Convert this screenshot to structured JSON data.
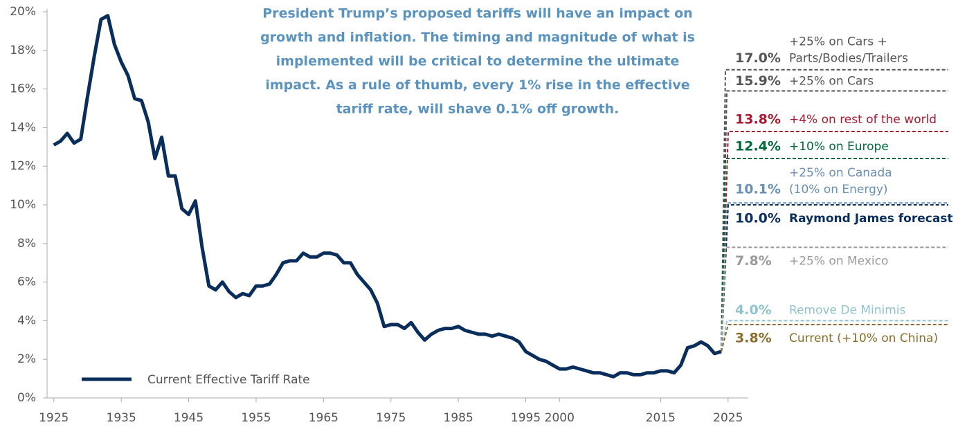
{
  "chart_data": {
    "type": "line",
    "title": [
      "President Trump’s proposed tariffs will have an impact on",
      "growth and inflation. The timing and magnitude of what is",
      "implemented will be critical to determine the ultimate",
      "impact. As a rule of thumb, every 1% rise in the effective",
      "tariff rate, will shave 0.1% off growth."
    ],
    "x": [
      1925,
      1926,
      1927,
      1928,
      1929,
      1930,
      1931,
      1932,
      1933,
      1934,
      1935,
      1936,
      1937,
      1938,
      1939,
      1940,
      1941,
      1942,
      1943,
      1944,
      1945,
      1946,
      1947,
      1948,
      1949,
      1950,
      1951,
      1952,
      1953,
      1954,
      1955,
      1956,
      1957,
      1958,
      1959,
      1960,
      1961,
      1962,
      1963,
      1964,
      1965,
      1966,
      1967,
      1968,
      1969,
      1970,
      1971,
      1972,
      1973,
      1974,
      1975,
      1976,
      1977,
      1978,
      1979,
      1980,
      1981,
      1982,
      1983,
      1984,
      1985,
      1986,
      1987,
      1988,
      1989,
      1990,
      1991,
      1992,
      1993,
      1994,
      1995,
      1996,
      1997,
      1998,
      1999,
      2000,
      2001,
      2002,
      2003,
      2004,
      2005,
      2006,
      2007,
      2008,
      2009,
      2010,
      2011,
      2012,
      2013,
      2014,
      2015,
      2016,
      2017,
      2018,
      2019,
      2020,
      2021,
      2022,
      2023,
      2024
    ],
    "series": [
      {
        "name": "Current Effective Tariff Rate",
        "color": "#0a2e5c",
        "values": [
          13.1,
          13.3,
          13.7,
          13.2,
          13.4,
          15.6,
          17.7,
          19.6,
          19.8,
          18.3,
          17.4,
          16.7,
          15.5,
          15.4,
          14.3,
          12.4,
          13.5,
          11.5,
          11.5,
          9.8,
          9.5,
          10.2,
          7.8,
          5.8,
          5.6,
          6.0,
          5.5,
          5.2,
          5.4,
          5.3,
          5.8,
          5.8,
          5.9,
          6.4,
          7.0,
          7.1,
          7.1,
          7.5,
          7.3,
          7.3,
          7.5,
          7.5,
          7.4,
          7.0,
          7.0,
          6.4,
          6.0,
          5.6,
          4.9,
          3.7,
          3.8,
          3.8,
          3.6,
          3.9,
          3.4,
          3.0,
          3.3,
          3.5,
          3.6,
          3.6,
          3.7,
          3.5,
          3.4,
          3.3,
          3.3,
          3.2,
          3.3,
          3.2,
          3.1,
          2.9,
          2.4,
          2.2,
          2.0,
          1.9,
          1.7,
          1.5,
          1.5,
          1.6,
          1.5,
          1.4,
          1.3,
          1.3,
          1.2,
          1.1,
          1.3,
          1.3,
          1.2,
          1.2,
          1.3,
          1.3,
          1.4,
          1.4,
          1.3,
          1.7,
          2.6,
          2.7,
          2.9,
          2.7,
          2.3,
          2.4
        ]
      }
    ],
    "xlim": [
      1924,
      2028
    ],
    "xticks": [
      1925,
      1935,
      1945,
      1955,
      1965,
      1975,
      1985,
      1995,
      2000,
      2015,
      2025
    ],
    "ylim": [
      0,
      20
    ],
    "yticks": [
      {
        "value": 0,
        "label": "0%"
      },
      {
        "value": 2,
        "label": "2%"
      },
      {
        "value": 4,
        "label": "4%"
      },
      {
        "value": 6,
        "label": "6%"
      },
      {
        "value": 8,
        "label": "8%"
      },
      {
        "value": 10,
        "label": "10%"
      },
      {
        "value": 12,
        "label": "12%"
      },
      {
        "value": 14,
        "label": "14%"
      },
      {
        "value": 16,
        "label": "16%"
      },
      {
        "value": 18,
        "label": "18%"
      },
      {
        "value": 20,
        "label": "20%"
      }
    ],
    "legend": "lower left",
    "scenarios": [
      {
        "value": 17.0,
        "value_label": "17.0%",
        "label": [
          "+25% on Cars +",
          "Parts/Bodies/Trailers"
        ],
        "color": "#555555"
      },
      {
        "value": 15.9,
        "value_label": "15.9%",
        "label": [
          "+25% on Cars"
        ],
        "color": "#555555"
      },
      {
        "value": 13.8,
        "value_label": "13.8%",
        "label": [
          "+4% on rest of the world"
        ],
        "color": "#a6192e"
      },
      {
        "value": 12.4,
        "value_label": "12.4%",
        "label": [
          "+10% on Europe"
        ],
        "color": "#006b3a"
      },
      {
        "value": 10.1,
        "value_label": "10.1%",
        "label": [
          "+25% on Canada",
          "(10% on Energy)"
        ],
        "color": "#6a8fb5"
      },
      {
        "value": 10.0,
        "value_label": "10.0%",
        "label": [
          "Raymond James forecast"
        ],
        "color": "#0a2e5c",
        "bold": true
      },
      {
        "value": 7.8,
        "value_label": "7.8%",
        "label": [
          "+25% on Mexico"
        ],
        "color": "#9a9a9a"
      },
      {
        "value": 4.0,
        "value_label": "4.0%",
        "label": [
          "Remove De Minimis"
        ],
        "color": "#8fc3d0"
      },
      {
        "value": 3.8,
        "value_label": "3.8%",
        "label": [
          "Current (+10% on China)"
        ],
        "color": "#8a6d2b"
      }
    ]
  }
}
